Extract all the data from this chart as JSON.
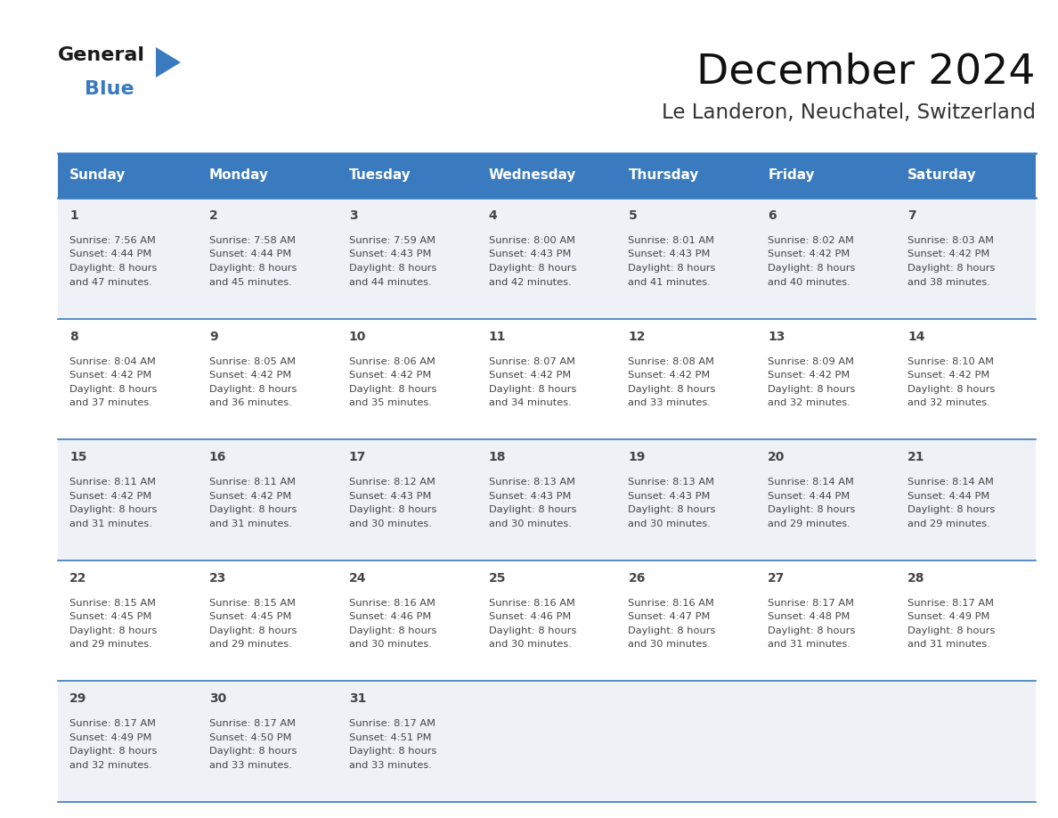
{
  "title": "December 2024",
  "subtitle": "Le Landeron, Neuchatel, Switzerland",
  "header_bg_color": "#3a7abf",
  "header_text_color": "#ffffff",
  "grid_line_color": "#3a7abf",
  "text_color": "#444444",
  "days_of_week": [
    "Sunday",
    "Monday",
    "Tuesday",
    "Wednesday",
    "Thursday",
    "Friday",
    "Saturday"
  ],
  "calendar_data": [
    [
      {
        "day": 1,
        "sunrise": "7:56 AM",
        "sunset": "4:44 PM",
        "daylight_mins": "47"
      },
      {
        "day": 2,
        "sunrise": "7:58 AM",
        "sunset": "4:44 PM",
        "daylight_mins": "45"
      },
      {
        "day": 3,
        "sunrise": "7:59 AM",
        "sunset": "4:43 PM",
        "daylight_mins": "44"
      },
      {
        "day": 4,
        "sunrise": "8:00 AM",
        "sunset": "4:43 PM",
        "daylight_mins": "42"
      },
      {
        "day": 5,
        "sunrise": "8:01 AM",
        "sunset": "4:43 PM",
        "daylight_mins": "41"
      },
      {
        "day": 6,
        "sunrise": "8:02 AM",
        "sunset": "4:42 PM",
        "daylight_mins": "40"
      },
      {
        "day": 7,
        "sunrise": "8:03 AM",
        "sunset": "4:42 PM",
        "daylight_mins": "38"
      }
    ],
    [
      {
        "day": 8,
        "sunrise": "8:04 AM",
        "sunset": "4:42 PM",
        "daylight_mins": "37"
      },
      {
        "day": 9,
        "sunrise": "8:05 AM",
        "sunset": "4:42 PM",
        "daylight_mins": "36"
      },
      {
        "day": 10,
        "sunrise": "8:06 AM",
        "sunset": "4:42 PM",
        "daylight_mins": "35"
      },
      {
        "day": 11,
        "sunrise": "8:07 AM",
        "sunset": "4:42 PM",
        "daylight_mins": "34"
      },
      {
        "day": 12,
        "sunrise": "8:08 AM",
        "sunset": "4:42 PM",
        "daylight_mins": "33"
      },
      {
        "day": 13,
        "sunrise": "8:09 AM",
        "sunset": "4:42 PM",
        "daylight_mins": "32"
      },
      {
        "day": 14,
        "sunrise": "8:10 AM",
        "sunset": "4:42 PM",
        "daylight_mins": "32"
      }
    ],
    [
      {
        "day": 15,
        "sunrise": "8:11 AM",
        "sunset": "4:42 PM",
        "daylight_mins": "31"
      },
      {
        "day": 16,
        "sunrise": "8:11 AM",
        "sunset": "4:42 PM",
        "daylight_mins": "31"
      },
      {
        "day": 17,
        "sunrise": "8:12 AM",
        "sunset": "4:43 PM",
        "daylight_mins": "30"
      },
      {
        "day": 18,
        "sunrise": "8:13 AM",
        "sunset": "4:43 PM",
        "daylight_mins": "30"
      },
      {
        "day": 19,
        "sunrise": "8:13 AM",
        "sunset": "4:43 PM",
        "daylight_mins": "30"
      },
      {
        "day": 20,
        "sunrise": "8:14 AM",
        "sunset": "4:44 PM",
        "daylight_mins": "29"
      },
      {
        "day": 21,
        "sunrise": "8:14 AM",
        "sunset": "4:44 PM",
        "daylight_mins": "29"
      }
    ],
    [
      {
        "day": 22,
        "sunrise": "8:15 AM",
        "sunset": "4:45 PM",
        "daylight_mins": "29"
      },
      {
        "day": 23,
        "sunrise": "8:15 AM",
        "sunset": "4:45 PM",
        "daylight_mins": "29"
      },
      {
        "day": 24,
        "sunrise": "8:16 AM",
        "sunset": "4:46 PM",
        "daylight_mins": "30"
      },
      {
        "day": 25,
        "sunrise": "8:16 AM",
        "sunset": "4:46 PM",
        "daylight_mins": "30"
      },
      {
        "day": 26,
        "sunrise": "8:16 AM",
        "sunset": "4:47 PM",
        "daylight_mins": "30"
      },
      {
        "day": 27,
        "sunrise": "8:17 AM",
        "sunset": "4:48 PM",
        "daylight_mins": "31"
      },
      {
        "day": 28,
        "sunrise": "8:17 AM",
        "sunset": "4:49 PM",
        "daylight_mins": "31"
      }
    ],
    [
      {
        "day": 29,
        "sunrise": "8:17 AM",
        "sunset": "4:49 PM",
        "daylight_mins": "32"
      },
      {
        "day": 30,
        "sunrise": "8:17 AM",
        "sunset": "4:50 PM",
        "daylight_mins": "33"
      },
      {
        "day": 31,
        "sunrise": "8:17 AM",
        "sunset": "4:51 PM",
        "daylight_mins": "33"
      },
      null,
      null,
      null,
      null
    ]
  ],
  "logo_color1": "#1a1a1a",
  "logo_color2": "#3a7abf",
  "logo_triangle_color": "#3a7abf",
  "fig_width": 11.88,
  "fig_height": 9.18,
  "dpi": 100
}
